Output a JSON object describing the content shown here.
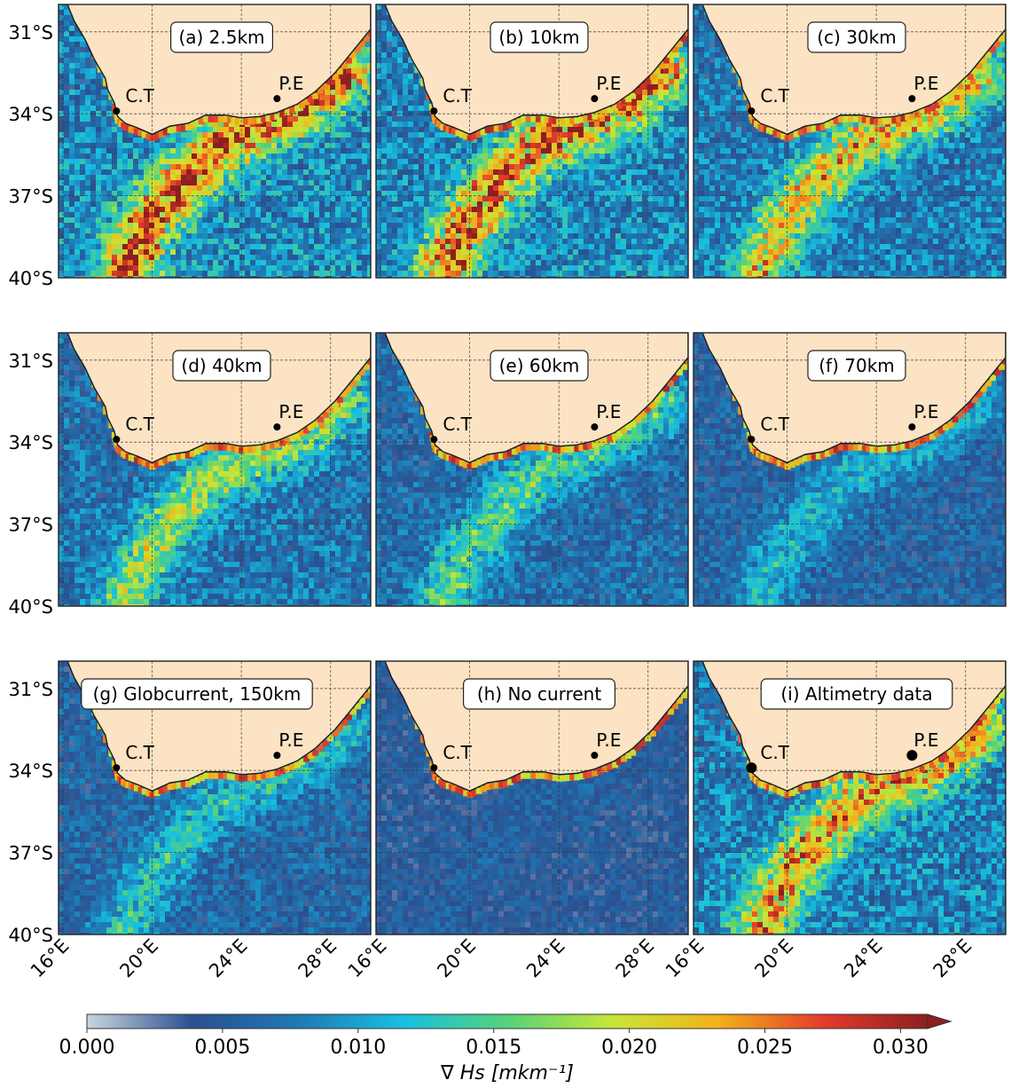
{
  "panels": [
    {
      "id": "a",
      "label": "(a) 2.5km",
      "intensity": 1.0
    },
    {
      "id": "b",
      "label": "(b) 10km",
      "intensity": 0.95
    },
    {
      "id": "c",
      "label": "(c) 30km",
      "intensity": 0.75
    },
    {
      "id": "d",
      "label": "(d) 40km",
      "intensity": 0.6
    },
    {
      "id": "e",
      "label": "(e) 60km",
      "intensity": 0.45
    },
    {
      "id": "f",
      "label": "(f) 70km",
      "intensity": 0.3
    },
    {
      "id": "g",
      "label": "(g) Globcurrent, 150km",
      "intensity": 0.35
    },
    {
      "id": "h",
      "label": "(h) No current",
      "intensity": 0.05
    },
    {
      "id": "i",
      "label": "(i) Altimetry data",
      "intensity": 0.85
    }
  ],
  "cities": [
    {
      "name": "C.T",
      "lon": 18.4,
      "lat": -33.9
    },
    {
      "name": "P.E",
      "lon": 25.6,
      "lat": -33.9
    }
  ],
  "lat_ticks": [
    "31°S",
    "34°S",
    "37°S",
    "40°S"
  ],
  "lat_values": [
    -31,
    -34,
    -37,
    -40
  ],
  "lon_ticks": [
    "16°E",
    "20°E",
    "24°E",
    "28°E"
  ],
  "lon_values": [
    16,
    20,
    24,
    28
  ],
  "lon_range": [
    15.8,
    29.8
  ],
  "lat_range": [
    -40,
    -30
  ],
  "colorbar": {
    "ticks": [
      "0.000",
      "0.005",
      "0.010",
      "0.015",
      "0.020",
      "0.025",
      "0.030"
    ],
    "tick_values": [
      0,
      0.005,
      0.01,
      0.015,
      0.02,
      0.025,
      0.03
    ],
    "range": [
      0,
      0.031
    ],
    "extend": "max",
    "label": "∇ Hs [mkm⁻¹]",
    "colors": [
      "#c9d6de",
      "#2b4f8f",
      "#1f78b4",
      "#17bfe0",
      "#56d27a",
      "#c8e636",
      "#f2b21a",
      "#e43b2c",
      "#8c1f1f"
    ]
  },
  "colors": {
    "land": "#fbe3c3",
    "ocean_base": "#8fb1c8",
    "coast": "#1a1a1a"
  }
}
